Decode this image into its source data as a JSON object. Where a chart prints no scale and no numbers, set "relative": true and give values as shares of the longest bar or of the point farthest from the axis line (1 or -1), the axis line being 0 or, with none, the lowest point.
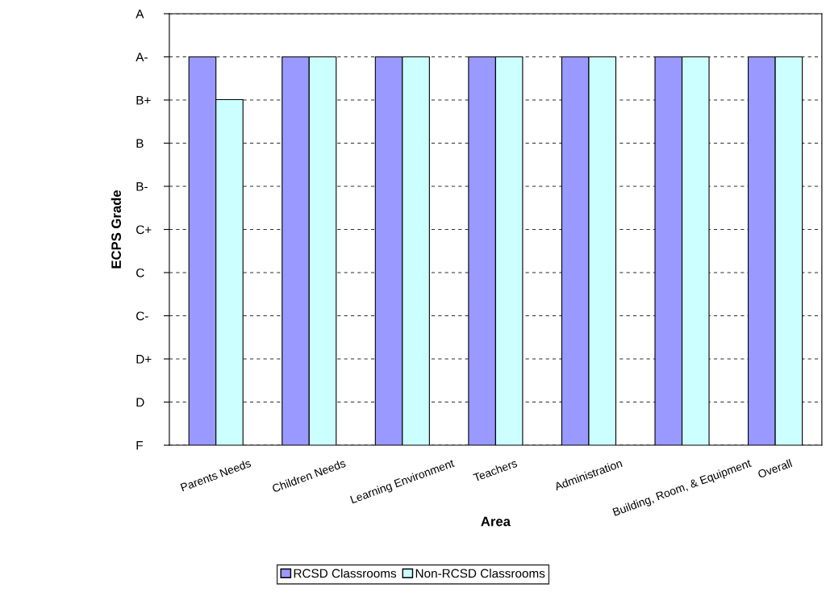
{
  "chart_data": {
    "type": "bar",
    "xlabel": "Area",
    "ylabel": "ECPS Grade",
    "relative": true,
    "categories": [
      "Parents Needs",
      "Children Needs",
      "Learning Environment",
      "Teachers",
      "Administration",
      "Building, Room, & Equipment",
      "Overall"
    ],
    "series": [
      {
        "name": "RCSD Classrooms",
        "color": "#9999ff",
        "values": [
          1,
          1,
          1,
          1,
          1,
          1,
          1
        ]
      },
      {
        "name": "Non-RCSD Classrooms",
        "color": "#ccffff",
        "values": [
          0.89,
          1,
          1,
          1,
          1,
          1,
          1
        ]
      }
    ],
    "annotations": [
      "F",
      "D",
      "D+",
      "C-",
      "C",
      "C+",
      "B-",
      "B",
      "B+",
      "A-",
      "A"
    ],
    "grid": "y",
    "legend": "bottom"
  }
}
